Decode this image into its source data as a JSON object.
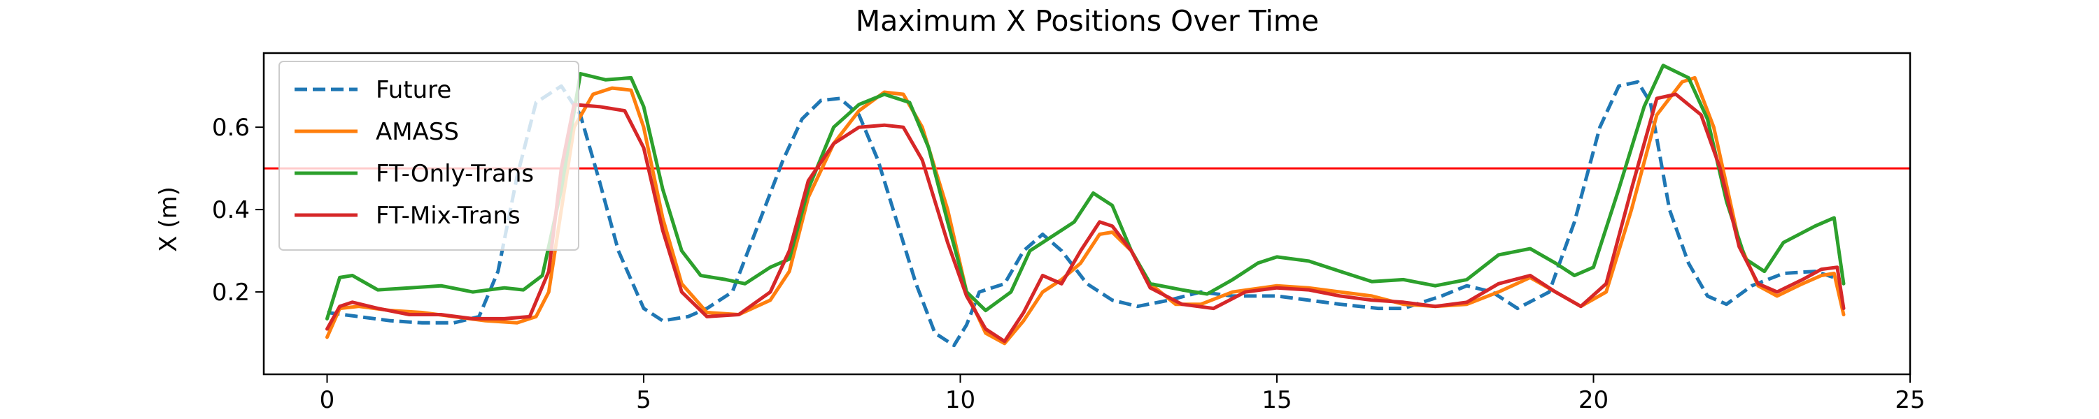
{
  "chart_data": {
    "type": "line",
    "title": "Maximum X Positions Over Time",
    "xlabel": "",
    "ylabel": "X (m)",
    "xlim": [
      -1.0,
      25.0
    ],
    "ylim": [
      0.0,
      0.78
    ],
    "xticks": [
      0,
      5,
      10,
      15,
      20,
      25
    ],
    "yticks": [
      0.2,
      0.4,
      0.6
    ],
    "grid": false,
    "legend_position": "upper-left",
    "reference_line": {
      "y": 0.5,
      "color": "#ff0000"
    },
    "series": [
      {
        "name": "Future",
        "color": "#1f77b4",
        "dash": true,
        "points": [
          [
            0.0,
            0.15
          ],
          [
            0.5,
            0.14
          ],
          [
            1.0,
            0.13
          ],
          [
            1.5,
            0.125
          ],
          [
            2.0,
            0.125
          ],
          [
            2.4,
            0.14
          ],
          [
            2.7,
            0.25
          ],
          [
            3.0,
            0.48
          ],
          [
            3.3,
            0.66
          ],
          [
            3.7,
            0.7
          ],
          [
            4.0,
            0.63
          ],
          [
            4.3,
            0.47
          ],
          [
            4.6,
            0.3
          ],
          [
            5.0,
            0.16
          ],
          [
            5.3,
            0.13
          ],
          [
            5.7,
            0.14
          ],
          [
            6.0,
            0.16
          ],
          [
            6.4,
            0.2
          ],
          [
            6.8,
            0.36
          ],
          [
            7.2,
            0.52
          ],
          [
            7.5,
            0.62
          ],
          [
            7.8,
            0.665
          ],
          [
            8.1,
            0.67
          ],
          [
            8.4,
            0.63
          ],
          [
            8.7,
            0.52
          ],
          [
            9.0,
            0.37
          ],
          [
            9.3,
            0.22
          ],
          [
            9.6,
            0.1
          ],
          [
            9.9,
            0.07
          ],
          [
            10.1,
            0.12
          ],
          [
            10.3,
            0.2
          ],
          [
            10.7,
            0.22
          ],
          [
            11.0,
            0.3
          ],
          [
            11.3,
            0.34
          ],
          [
            11.6,
            0.3
          ],
          [
            12.0,
            0.22
          ],
          [
            12.4,
            0.18
          ],
          [
            12.8,
            0.165
          ],
          [
            13.3,
            0.18
          ],
          [
            13.8,
            0.2
          ],
          [
            14.3,
            0.19
          ],
          [
            15.0,
            0.19
          ],
          [
            16.0,
            0.17
          ],
          [
            16.6,
            0.16
          ],
          [
            17.0,
            0.16
          ],
          [
            17.6,
            0.19
          ],
          [
            18.0,
            0.215
          ],
          [
            18.4,
            0.2
          ],
          [
            18.8,
            0.16
          ],
          [
            19.3,
            0.2
          ],
          [
            19.7,
            0.37
          ],
          [
            20.1,
            0.6
          ],
          [
            20.4,
            0.7
          ],
          [
            20.7,
            0.71
          ],
          [
            20.9,
            0.66
          ],
          [
            21.2,
            0.4
          ],
          [
            21.5,
            0.27
          ],
          [
            21.8,
            0.19
          ],
          [
            22.1,
            0.17
          ],
          [
            22.5,
            0.215
          ],
          [
            23.0,
            0.245
          ],
          [
            23.5,
            0.25
          ],
          [
            23.9,
            0.23
          ]
        ]
      },
      {
        "name": "AMASS",
        "color": "#ff7f0e",
        "dash": false,
        "points": [
          [
            0.0,
            0.09
          ],
          [
            0.2,
            0.16
          ],
          [
            0.5,
            0.165
          ],
          [
            1.0,
            0.155
          ],
          [
            1.5,
            0.15
          ],
          [
            2.0,
            0.14
          ],
          [
            2.5,
            0.13
          ],
          [
            3.0,
            0.125
          ],
          [
            3.3,
            0.14
          ],
          [
            3.5,
            0.2
          ],
          [
            3.7,
            0.4
          ],
          [
            3.9,
            0.6
          ],
          [
            4.2,
            0.68
          ],
          [
            4.5,
            0.695
          ],
          [
            4.8,
            0.69
          ],
          [
            5.0,
            0.6
          ],
          [
            5.3,
            0.38
          ],
          [
            5.6,
            0.22
          ],
          [
            6.0,
            0.15
          ],
          [
            6.5,
            0.145
          ],
          [
            7.0,
            0.18
          ],
          [
            7.3,
            0.25
          ],
          [
            7.6,
            0.43
          ],
          [
            8.0,
            0.56
          ],
          [
            8.4,
            0.64
          ],
          [
            8.8,
            0.685
          ],
          [
            9.1,
            0.68
          ],
          [
            9.4,
            0.6
          ],
          [
            9.8,
            0.4
          ],
          [
            10.1,
            0.2
          ],
          [
            10.4,
            0.1
          ],
          [
            10.7,
            0.075
          ],
          [
            11.0,
            0.13
          ],
          [
            11.3,
            0.2
          ],
          [
            11.6,
            0.23
          ],
          [
            11.9,
            0.27
          ],
          [
            12.2,
            0.34
          ],
          [
            12.4,
            0.345
          ],
          [
            12.7,
            0.3
          ],
          [
            13.0,
            0.22
          ],
          [
            13.4,
            0.17
          ],
          [
            13.8,
            0.17
          ],
          [
            14.3,
            0.2
          ],
          [
            15.0,
            0.215
          ],
          [
            15.5,
            0.21
          ],
          [
            16.0,
            0.2
          ],
          [
            16.5,
            0.19
          ],
          [
            17.0,
            0.17
          ],
          [
            17.5,
            0.165
          ],
          [
            18.0,
            0.17
          ],
          [
            18.5,
            0.2
          ],
          [
            19.0,
            0.235
          ],
          [
            19.4,
            0.2
          ],
          [
            19.8,
            0.165
          ],
          [
            20.2,
            0.2
          ],
          [
            20.6,
            0.4
          ],
          [
            21.0,
            0.63
          ],
          [
            21.4,
            0.71
          ],
          [
            21.6,
            0.72
          ],
          [
            21.9,
            0.6
          ],
          [
            22.3,
            0.32
          ],
          [
            22.6,
            0.215
          ],
          [
            22.9,
            0.19
          ],
          [
            23.3,
            0.22
          ],
          [
            23.6,
            0.24
          ],
          [
            23.8,
            0.245
          ],
          [
            23.95,
            0.145
          ]
        ]
      },
      {
        "name": "FT-Only-Trans",
        "color": "#2ca02c",
        "dash": false,
        "points": [
          [
            0.0,
            0.135
          ],
          [
            0.2,
            0.235
          ],
          [
            0.4,
            0.24
          ],
          [
            0.8,
            0.205
          ],
          [
            1.3,
            0.21
          ],
          [
            1.8,
            0.215
          ],
          [
            2.3,
            0.2
          ],
          [
            2.8,
            0.21
          ],
          [
            3.1,
            0.205
          ],
          [
            3.4,
            0.24
          ],
          [
            3.7,
            0.45
          ],
          [
            4.0,
            0.73
          ],
          [
            4.4,
            0.715
          ],
          [
            4.8,
            0.72
          ],
          [
            5.0,
            0.65
          ],
          [
            5.3,
            0.45
          ],
          [
            5.6,
            0.3
          ],
          [
            5.9,
            0.24
          ],
          [
            6.3,
            0.23
          ],
          [
            6.6,
            0.22
          ],
          [
            7.0,
            0.26
          ],
          [
            7.3,
            0.28
          ],
          [
            7.6,
            0.45
          ],
          [
            8.0,
            0.6
          ],
          [
            8.4,
            0.655
          ],
          [
            8.8,
            0.68
          ],
          [
            9.2,
            0.66
          ],
          [
            9.5,
            0.55
          ],
          [
            9.8,
            0.37
          ],
          [
            10.1,
            0.2
          ],
          [
            10.4,
            0.155
          ],
          [
            10.8,
            0.2
          ],
          [
            11.1,
            0.3
          ],
          [
            11.5,
            0.34
          ],
          [
            11.8,
            0.37
          ],
          [
            12.1,
            0.44
          ],
          [
            12.4,
            0.41
          ],
          [
            12.7,
            0.3
          ],
          [
            13.0,
            0.22
          ],
          [
            13.5,
            0.205
          ],
          [
            13.9,
            0.195
          ],
          [
            14.3,
            0.23
          ],
          [
            14.7,
            0.27
          ],
          [
            15.0,
            0.285
          ],
          [
            15.5,
            0.275
          ],
          [
            16.0,
            0.25
          ],
          [
            16.5,
            0.225
          ],
          [
            17.0,
            0.23
          ],
          [
            17.5,
            0.215
          ],
          [
            18.0,
            0.23
          ],
          [
            18.5,
            0.29
          ],
          [
            19.0,
            0.305
          ],
          [
            19.4,
            0.27
          ],
          [
            19.7,
            0.24
          ],
          [
            20.0,
            0.26
          ],
          [
            20.4,
            0.45
          ],
          [
            20.8,
            0.65
          ],
          [
            21.1,
            0.75
          ],
          [
            21.5,
            0.72
          ],
          [
            21.8,
            0.62
          ],
          [
            22.1,
            0.42
          ],
          [
            22.4,
            0.28
          ],
          [
            22.7,
            0.25
          ],
          [
            23.0,
            0.32
          ],
          [
            23.5,
            0.36
          ],
          [
            23.8,
            0.38
          ],
          [
            23.95,
            0.22
          ]
        ]
      },
      {
        "name": "FT-Mix-Trans",
        "color": "#d62728",
        "dash": false,
        "points": [
          [
            0.0,
            0.11
          ],
          [
            0.2,
            0.165
          ],
          [
            0.4,
            0.175
          ],
          [
            0.8,
            0.16
          ],
          [
            1.3,
            0.145
          ],
          [
            1.8,
            0.145
          ],
          [
            2.3,
            0.135
          ],
          [
            2.8,
            0.135
          ],
          [
            3.2,
            0.14
          ],
          [
            3.5,
            0.25
          ],
          [
            3.7,
            0.5
          ],
          [
            3.9,
            0.655
          ],
          [
            4.3,
            0.65
          ],
          [
            4.7,
            0.64
          ],
          [
            5.0,
            0.55
          ],
          [
            5.3,
            0.35
          ],
          [
            5.6,
            0.2
          ],
          [
            6.0,
            0.14
          ],
          [
            6.5,
            0.145
          ],
          [
            7.0,
            0.2
          ],
          [
            7.3,
            0.3
          ],
          [
            7.6,
            0.47
          ],
          [
            8.0,
            0.56
          ],
          [
            8.4,
            0.6
          ],
          [
            8.8,
            0.605
          ],
          [
            9.1,
            0.6
          ],
          [
            9.4,
            0.52
          ],
          [
            9.8,
            0.32
          ],
          [
            10.1,
            0.19
          ],
          [
            10.4,
            0.11
          ],
          [
            10.7,
            0.08
          ],
          [
            11.0,
            0.15
          ],
          [
            11.3,
            0.24
          ],
          [
            11.6,
            0.22
          ],
          [
            11.9,
            0.3
          ],
          [
            12.2,
            0.37
          ],
          [
            12.4,
            0.36
          ],
          [
            12.7,
            0.3
          ],
          [
            13.0,
            0.21
          ],
          [
            13.5,
            0.17
          ],
          [
            14.0,
            0.16
          ],
          [
            14.5,
            0.2
          ],
          [
            15.0,
            0.21
          ],
          [
            15.5,
            0.205
          ],
          [
            16.0,
            0.19
          ],
          [
            16.5,
            0.18
          ],
          [
            17.0,
            0.175
          ],
          [
            17.5,
            0.165
          ],
          [
            18.0,
            0.175
          ],
          [
            18.5,
            0.22
          ],
          [
            19.0,
            0.24
          ],
          [
            19.4,
            0.2
          ],
          [
            19.8,
            0.165
          ],
          [
            20.2,
            0.22
          ],
          [
            20.6,
            0.45
          ],
          [
            21.0,
            0.67
          ],
          [
            21.3,
            0.68
          ],
          [
            21.7,
            0.63
          ],
          [
            22.0,
            0.5
          ],
          [
            22.3,
            0.31
          ],
          [
            22.6,
            0.22
          ],
          [
            22.9,
            0.2
          ],
          [
            23.3,
            0.23
          ],
          [
            23.6,
            0.255
          ],
          [
            23.85,
            0.26
          ],
          [
            23.95,
            0.16
          ]
        ]
      }
    ]
  }
}
